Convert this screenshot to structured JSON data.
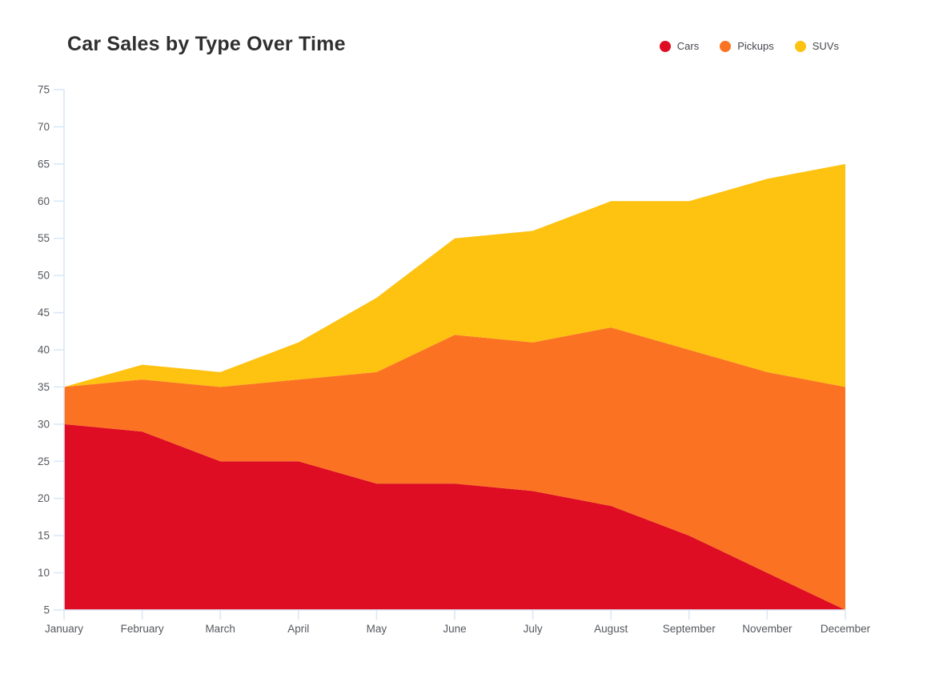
{
  "header": {
    "title": "Car Sales by Type Over Time"
  },
  "chart_data": {
    "type": "area",
    "stacked": true,
    "title": "Car Sales by Type Over Time",
    "categories": [
      "January",
      "February",
      "March",
      "April",
      "May",
      "June",
      "July",
      "August",
      "September",
      "November",
      "December"
    ],
    "series": [
      {
        "name": "Cars",
        "color": "#de0d23",
        "values": [
          30,
          29,
          25,
          25,
          22,
          22,
          21,
          19,
          15,
          10,
          5
        ]
      },
      {
        "name": "Pickups",
        "color": "#fb7322",
        "values": [
          5,
          7,
          10,
          11,
          15,
          20,
          20,
          24,
          25,
          27,
          30
        ]
      },
      {
        "name": "SUVs",
        "color": "#fec211",
        "values": [
          0,
          2,
          2,
          5,
          10,
          13,
          15,
          17,
          20,
          26,
          30
        ]
      }
    ],
    "stack_tops": {
      "cars": [
        30,
        29,
        25,
        25,
        22,
        22,
        21,
        19,
        15,
        10,
        5
      ],
      "cars_plus_pickups": [
        35,
        36,
        35,
        36,
        37,
        42,
        41,
        43,
        40,
        37,
        35
      ],
      "total": [
        35,
        38,
        37,
        41,
        47,
        55,
        56,
        60,
        60,
        63,
        65
      ]
    },
    "xlabel": "",
    "ylabel": "",
    "y_axis": {
      "min": 5,
      "max": 75,
      "step": 5,
      "ticks": [
        5,
        10,
        15,
        20,
        25,
        30,
        35,
        40,
        45,
        50,
        55,
        60,
        65,
        70,
        75
      ]
    },
    "baseline": 5,
    "grid": false,
    "legend_position": "top-right",
    "axis_color": "#d9e8f7",
    "tick_label_color": "#55585e"
  }
}
